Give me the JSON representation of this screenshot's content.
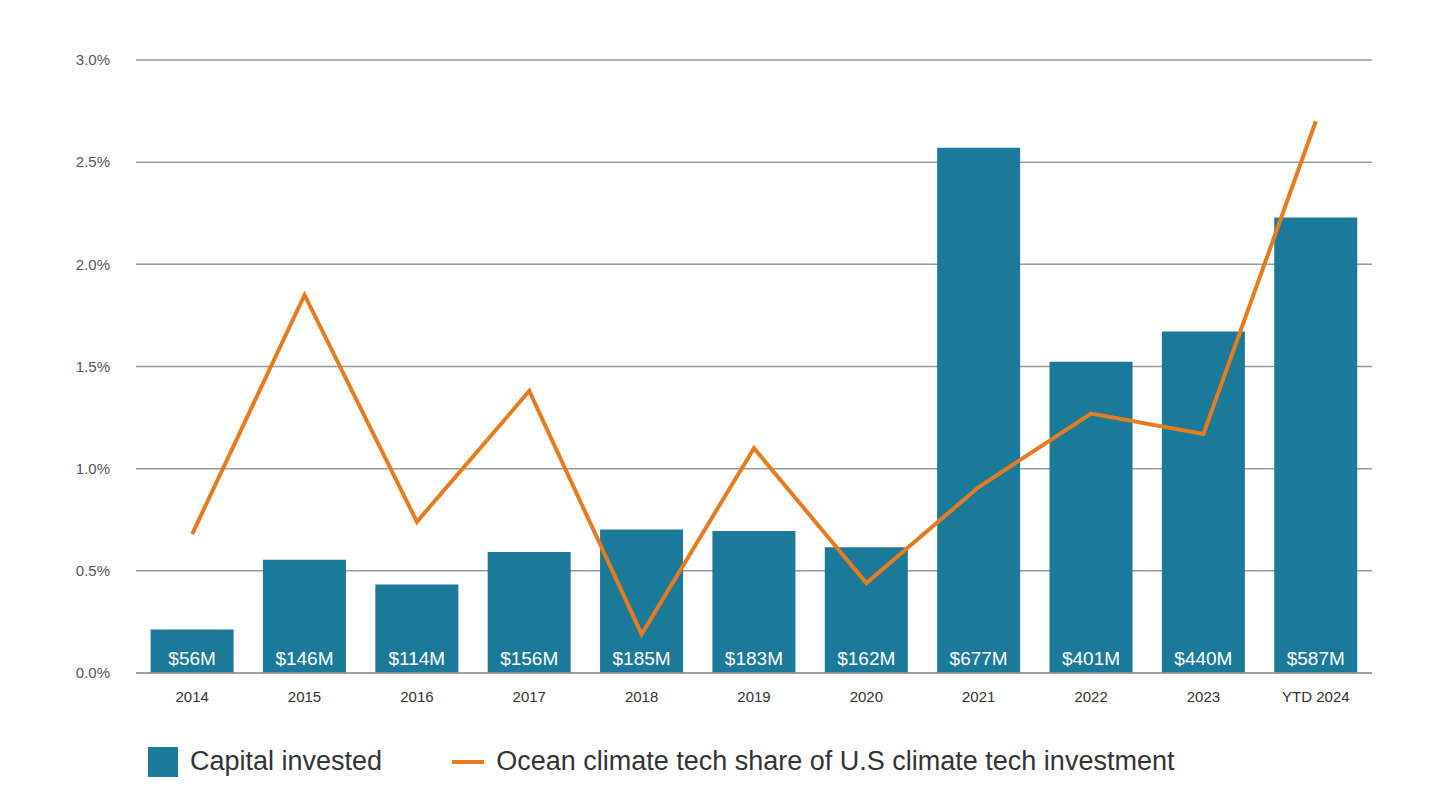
{
  "chart_data": {
    "type": "bar",
    "categories": [
      "2014",
      "2015",
      "2016",
      "2017",
      "2018",
      "2019",
      "2020",
      "2021",
      "2022",
      "2023",
      "YTD 2024"
    ],
    "series": [
      {
        "name": "Capital invested",
        "type": "bar",
        "axis": "y2",
        "color": "#1b7a99",
        "data_labels": true,
        "values": [
          56,
          146,
          114,
          156,
          185,
          183,
          162,
          677,
          401,
          440,
          587
        ],
        "value_labels": [
          "$56M",
          "$146M",
          "$114M",
          "$156M",
          "$185M",
          "$183M",
          "$162M",
          "$677M",
          "$401M",
          "$440M",
          "$587M"
        ]
      },
      {
        "name": "Ocean climate tech share of U.S climate tech investment",
        "type": "line",
        "color": "#e57c1f",
        "values": [
          0.68,
          1.85,
          0.74,
          1.38,
          0.19,
          1.1,
          0.44,
          0.91,
          1.27,
          1.17,
          2.7
        ]
      }
    ],
    "ylim": [
      0,
      3
    ],
    "yticks": [
      {
        "value": 0,
        "label": "0.0%"
      },
      {
        "value": 0.5,
        "label": "0.5%"
      },
      {
        "value": 1,
        "label": "1.0%"
      },
      {
        "value": 1.5,
        "label": "1.5%"
      },
      {
        "value": 2,
        "label": "2.0%"
      },
      {
        "value": 2.5,
        "label": "2.5%"
      },
      {
        "value": 3,
        "label": "3.0%"
      }
    ],
    "y2lim": [
      0,
      790
    ],
    "grid": true,
    "legend": "bottom"
  }
}
